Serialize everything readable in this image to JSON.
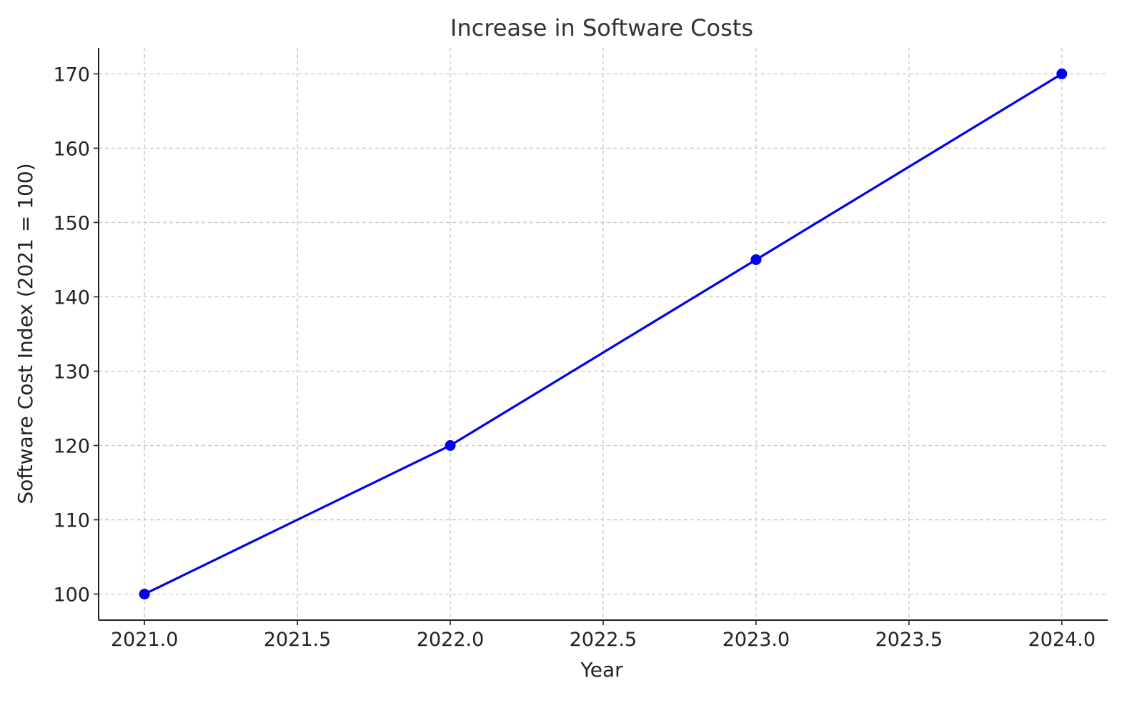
{
  "chart_data": {
    "type": "line",
    "title": "Increase in Software Costs",
    "xlabel": "Year",
    "ylabel": "Software Cost Index (2021 = 100)",
    "x": [
      2021,
      2022,
      2023,
      2024
    ],
    "series": [
      {
        "values": [
          100,
          120,
          145,
          170
        ],
        "color": "#0000ee",
        "marker": "circle"
      }
    ],
    "xlim": [
      2020.85,
      2024.15
    ],
    "ylim": [
      96.5,
      173.5
    ],
    "xticks": [
      2021.0,
      2021.5,
      2022.0,
      2022.5,
      2023.0,
      2023.5,
      2024.0
    ],
    "xtick_labels": [
      "2021.0",
      "2021.5",
      "2022.0",
      "2022.5",
      "2023.0",
      "2023.5",
      "2024.0"
    ],
    "yticks": [
      100,
      110,
      120,
      130,
      140,
      150,
      160,
      170
    ],
    "ytick_labels": [
      "100",
      "110",
      "120",
      "130",
      "140",
      "150",
      "160",
      "170"
    ],
    "grid": true,
    "grid_style": "dashed",
    "spines": [
      "left",
      "bottom"
    ]
  }
}
